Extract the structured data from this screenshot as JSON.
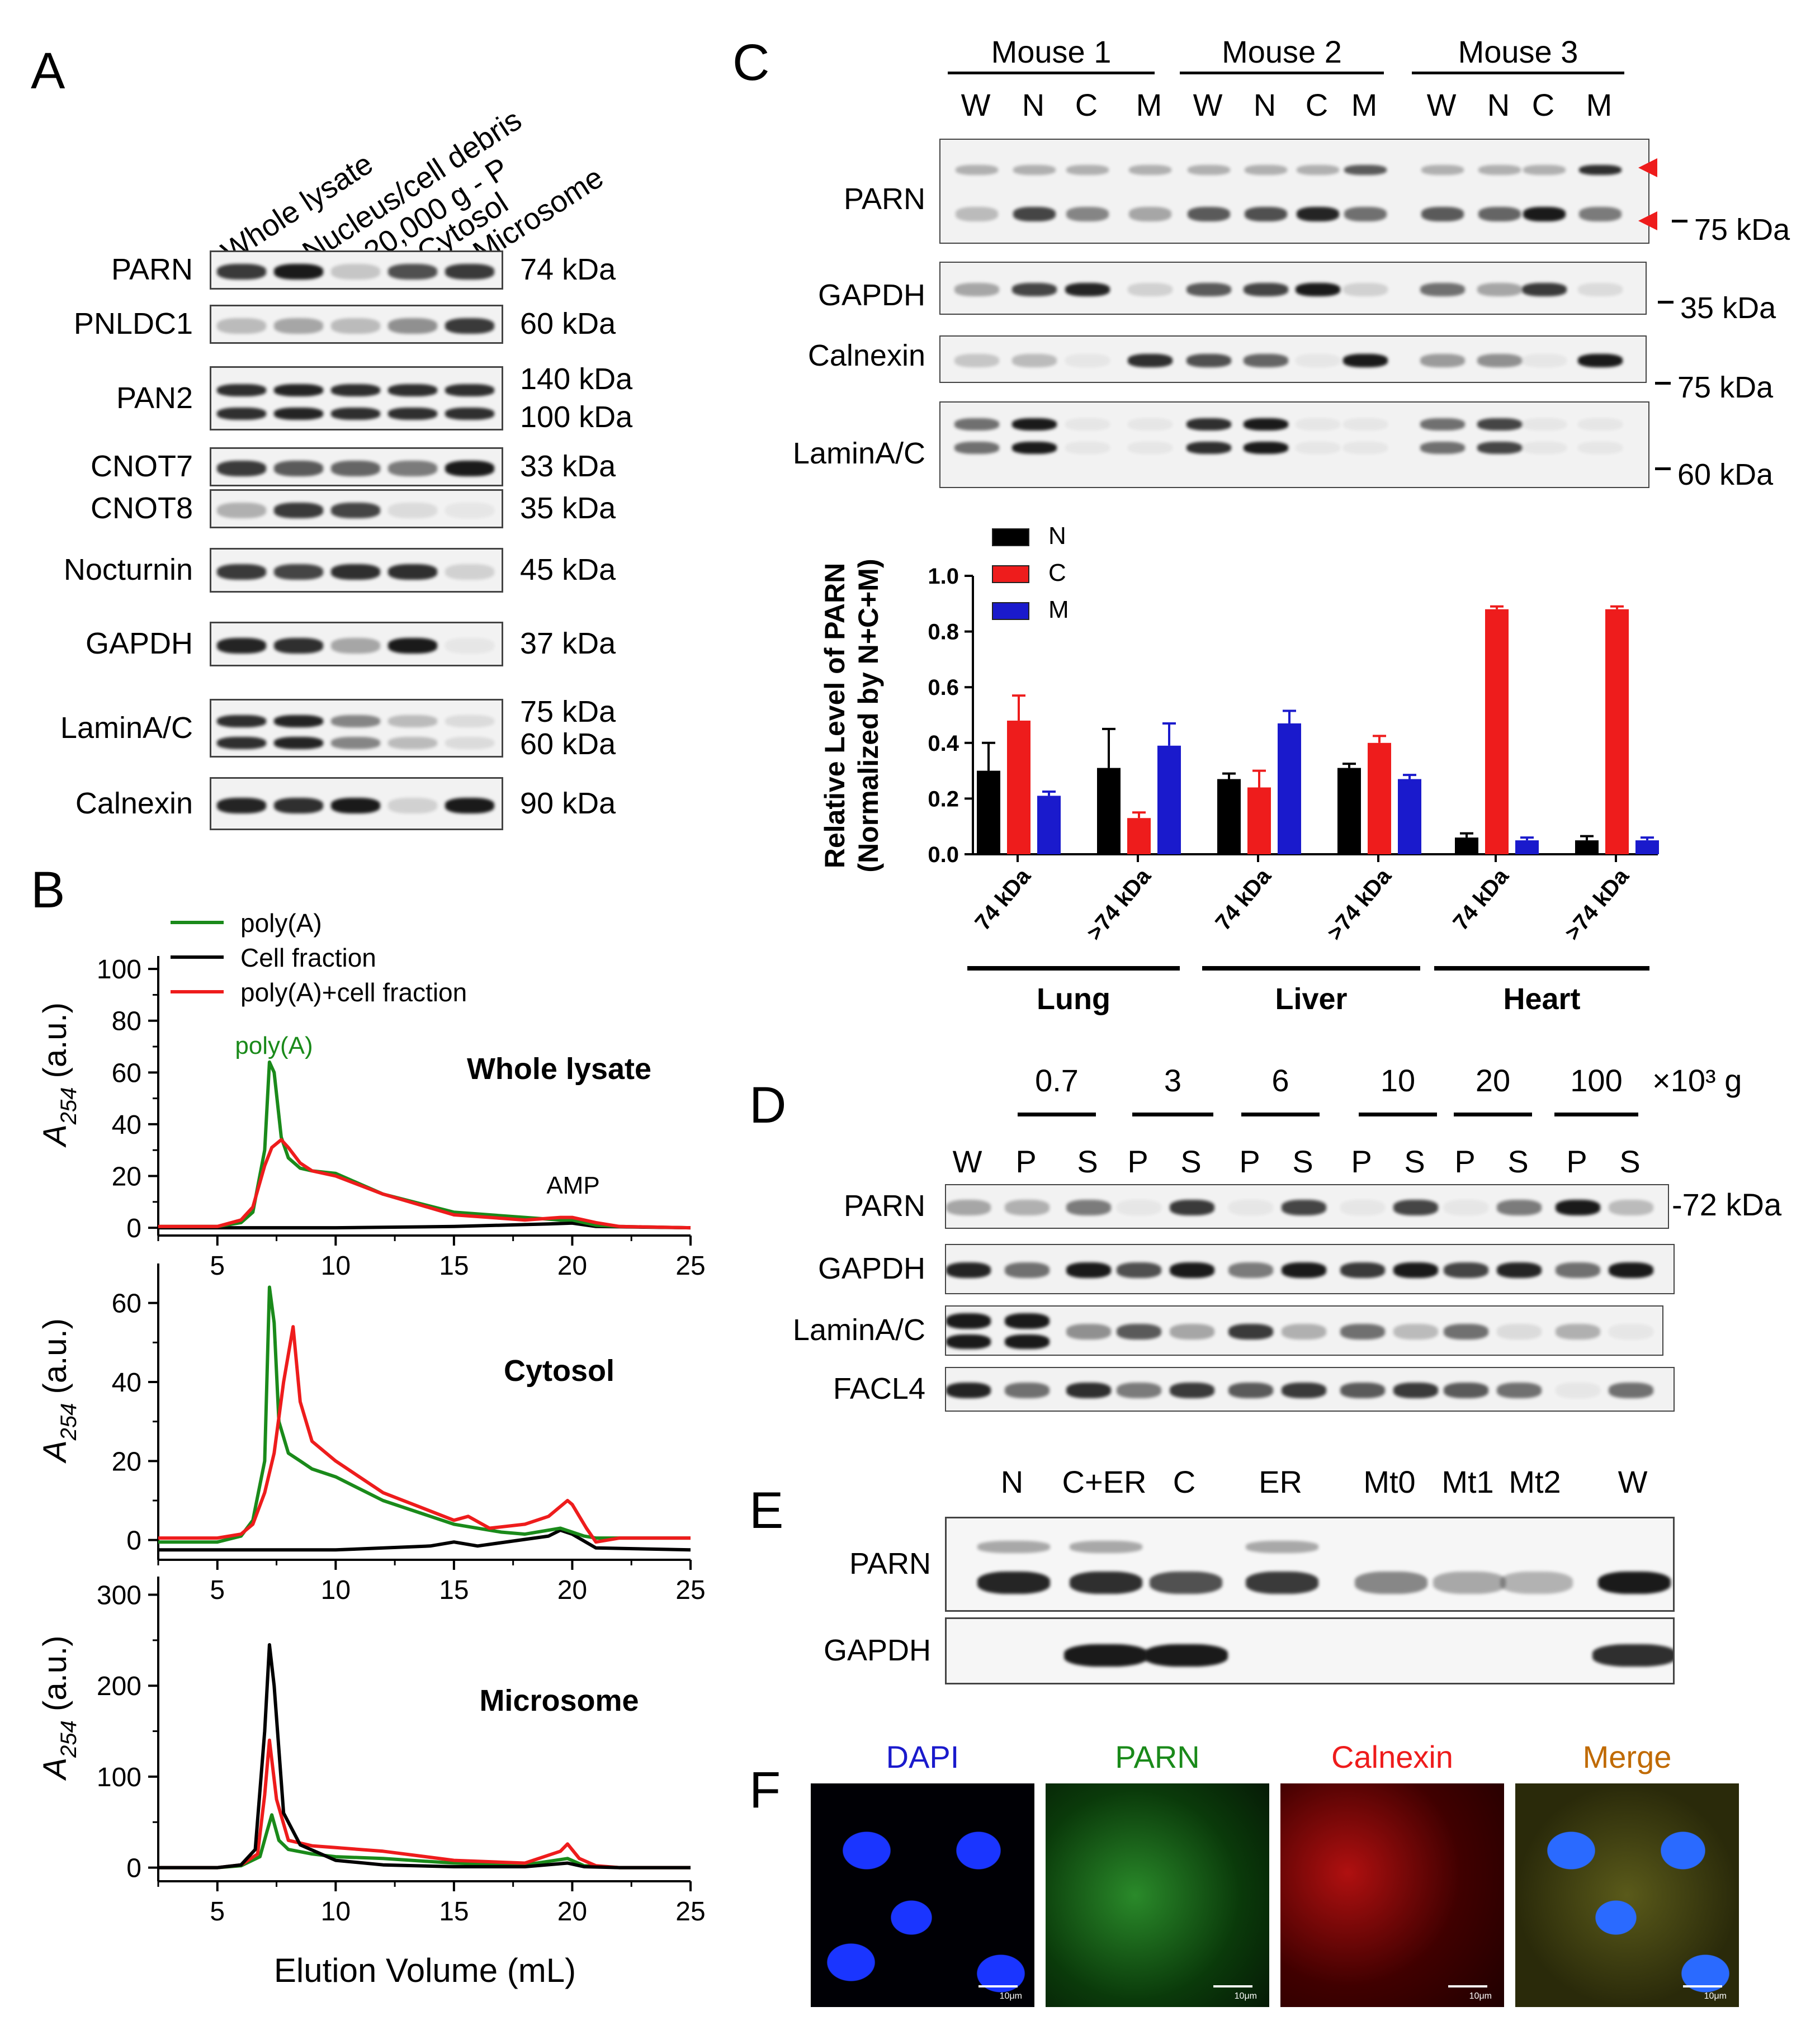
{
  "colors": {
    "green": "#1a8a1a",
    "black": "#000000",
    "red": "#ee1c1c",
    "blue": "#1a1acc",
    "merge_label": "#c06a00",
    "dapi_label": "#1a1acc"
  },
  "panelA": {
    "letter": "A",
    "lanes": [
      "Whole lysate",
      "Nucleus/cell debris",
      "20,000 g - P",
      "Cytosol",
      "Microsome"
    ],
    "rows": [
      {
        "name": "PARN",
        "sizes": [
          "74 kDa"
        ]
      },
      {
        "name": "PNLDC1",
        "sizes": [
          "60 kDa"
        ]
      },
      {
        "name": "PAN2",
        "sizes": [
          "140 kDa",
          "100 kDa"
        ]
      },
      {
        "name": "CNOT7",
        "sizes": [
          "33 kDa"
        ]
      },
      {
        "name": "CNOT8",
        "sizes": [
          "35 kDa"
        ]
      },
      {
        "name": "Nocturnin",
        "sizes": [
          "45 kDa"
        ]
      },
      {
        "name": "GAPDH",
        "sizes": [
          "37 kDa"
        ]
      },
      {
        "name": "LaminA/C",
        "sizes": [
          "75 kDa",
          "60 kDa"
        ]
      },
      {
        "name": "Calnexin",
        "sizes": [
          "90 kDa"
        ]
      }
    ]
  },
  "panelB": {
    "letter": "B",
    "legend": [
      "poly(A)",
      "Cell fraction",
      "poly(A)+cell fraction"
    ],
    "xlabel": "Elution Volume (mL)",
    "ylabel_main": "A",
    "ylabel_sub": "254",
    "ylabel_unit": "(a.u.)",
    "subplots": [
      {
        "title": "Whole lysate",
        "annotations": [
          "poly(A)",
          "AMP"
        ]
      },
      {
        "title": "Cytosol"
      },
      {
        "title": "Microsome"
      }
    ]
  },
  "panelC": {
    "letter": "C",
    "mice": [
      "Mouse 1",
      "Mouse 2",
      "Mouse 3"
    ],
    "lanes": [
      "W",
      "N",
      "C",
      "M",
      "W",
      "N",
      "C",
      "M",
      "W",
      "N",
      "C",
      "M"
    ],
    "rows": [
      "PARN",
      "GAPDH",
      "Calnexin",
      "LaminA/C"
    ],
    "markers": [
      "75 kDa",
      "35 kDa",
      "75 kDa",
      "60 kDa"
    ],
    "ylabel1": "Relative Level of PARN",
    "ylabel2": "(Normalized by N+C+M)",
    "legend": [
      "N",
      "C",
      "M"
    ],
    "groups": [
      "Lung",
      "Liver",
      "Heart"
    ],
    "subgroups": [
      "74 kDa",
      ">74 kDa",
      "74 kDa",
      ">74 kDa",
      "74 kDa",
      ">74 kDa"
    ]
  },
  "panelD": {
    "letter": "D",
    "speeds": [
      "0.7",
      "3",
      "6",
      "10",
      "20",
      "100"
    ],
    "unit": "×10³ g",
    "lanes": [
      "W",
      "P",
      "S",
      "P",
      "S",
      "P",
      "S",
      "P",
      "S",
      "P",
      "S",
      "P",
      "S"
    ],
    "rows": [
      "PARN",
      "GAPDH",
      "LaminA/C",
      "FACL4"
    ],
    "marker": "-72 kDa"
  },
  "panelE": {
    "letter": "E",
    "lanes": [
      "N",
      "C+ER",
      "C",
      "ER",
      "Mt0",
      "Mt1",
      "Mt2",
      "W"
    ],
    "rows": [
      "PARN",
      "GAPDH"
    ]
  },
  "panelF": {
    "letter": "F",
    "channels": [
      "DAPI",
      "PARN",
      "Calnexin",
      "Merge"
    ],
    "scalebar": "10μm"
  },
  "chart_data": [
    {
      "type": "line",
      "title": "Whole lysate",
      "xlabel": "Elution Volume (mL)",
      "ylabel": "A254 (a.u.)",
      "xlim": [
        2.5,
        25
      ],
      "ylim": [
        -3,
        105
      ],
      "xticks": [
        5,
        10,
        15,
        20,
        25
      ],
      "yticks": [
        0,
        20,
        40,
        60,
        80,
        100
      ],
      "series": [
        {
          "name": "poly(A)",
          "x": [
            2.5,
            5,
            6,
            6.5,
            7,
            7.2,
            7.4,
            7.7,
            8,
            8.5,
            9,
            10,
            12,
            15,
            18,
            19.5,
            20,
            21,
            22,
            25
          ],
          "y": [
            0.5,
            0.5,
            2,
            6,
            30,
            64,
            60,
            35,
            27,
            23,
            22,
            21,
            13,
            6,
            4,
            3,
            3,
            1,
            0.5,
            0
          ]
        },
        {
          "name": "Cell fraction",
          "x": [
            2.5,
            5,
            10,
            15,
            19,
            20,
            21,
            25
          ],
          "y": [
            0,
            0,
            0,
            0.5,
            1.5,
            1.8,
            0.5,
            0
          ]
        },
        {
          "name": "poly(A)+cell fraction",
          "x": [
            2.5,
            5,
            6,
            6.5,
            7,
            7.3,
            7.7,
            8,
            8.5,
            9,
            10,
            12,
            15,
            18,
            19.5,
            20,
            21,
            22,
            25
          ],
          "y": [
            0.5,
            0.5,
            3,
            8,
            24,
            31,
            34,
            31,
            25,
            22,
            20,
            13,
            5,
            3,
            4,
            4,
            2,
            0.5,
            0
          ]
        }
      ]
    },
    {
      "type": "line",
      "title": "Cytosol",
      "xlabel": "Elution Volume (mL)",
      "ylabel": "A254 (a.u.)",
      "xlim": [
        2.5,
        25
      ],
      "ylim": [
        -5,
        70
      ],
      "xticks": [
        5,
        10,
        15,
        20,
        25
      ],
      "yticks": [
        0,
        20,
        40,
        60
      ],
      "series": [
        {
          "name": "poly(A)",
          "x": [
            2.5,
            5,
            6,
            6.5,
            7,
            7.2,
            7.4,
            7.6,
            8,
            8.5,
            9,
            10,
            12,
            15,
            17,
            18,
            19.5,
            20,
            20.5,
            21,
            22,
            25
          ],
          "y": [
            -0.5,
            -0.5,
            1,
            5,
            20,
            64,
            55,
            30,
            22,
            20,
            18,
            16,
            10,
            4,
            2,
            1.5,
            3,
            2,
            1,
            0.5,
            0.5,
            0.5
          ]
        },
        {
          "name": "Cell fraction",
          "x": [
            2.5,
            5,
            10,
            14,
            15,
            16,
            19,
            19.5,
            20,
            21,
            25
          ],
          "y": [
            -2.5,
            -2.5,
            -2.5,
            -1.5,
            -0.5,
            -1.5,
            1,
            2.5,
            1.5,
            -2,
            -2.5
          ]
        },
        {
          "name": "poly(A)+cell fraction",
          "x": [
            2.5,
            5,
            6,
            6.5,
            7,
            7.4,
            7.8,
            8.2,
            8.5,
            9,
            10,
            12,
            15,
            15.6,
            16.5,
            18,
            19,
            19.8,
            20,
            20.6,
            21,
            22,
            25
          ],
          "y": [
            0.5,
            0.5,
            1.5,
            4,
            12,
            22,
            40,
            54,
            35,
            25,
            20,
            12,
            5,
            6,
            3,
            4,
            6,
            10,
            9,
            3,
            -0.5,
            0.5,
            0.5
          ]
        }
      ]
    },
    {
      "type": "line",
      "title": "Microsome",
      "xlabel": "Elution Volume (mL)",
      "ylabel": "A254 (a.u.)",
      "xlim": [
        2.5,
        25
      ],
      "ylim": [
        -15,
        320
      ],
      "xticks": [
        5,
        10,
        15,
        20,
        25
      ],
      "yticks": [
        0,
        100,
        200,
        300
      ],
      "series": [
        {
          "name": "poly(A)",
          "x": [
            2.5,
            5,
            6,
            6.8,
            7.1,
            7.3,
            7.6,
            8,
            9,
            10,
            12,
            15,
            18,
            19.8,
            20.5,
            22,
            25
          ],
          "y": [
            0,
            0,
            2,
            12,
            40,
            58,
            30,
            20,
            15,
            12,
            10,
            5,
            3,
            10,
            2,
            0,
            0
          ]
        },
        {
          "name": "Cell fraction",
          "x": [
            2.5,
            5,
            6,
            6.6,
            7,
            7.2,
            7.4,
            7.8,
            8.5,
            10,
            12,
            15,
            18,
            19.8,
            20.5,
            22,
            25
          ],
          "y": [
            0,
            0,
            3,
            20,
            150,
            245,
            200,
            60,
            25,
            8,
            3,
            1,
            1,
            5,
            1,
            0,
            0
          ]
        },
        {
          "name": "poly(A)+cell fraction",
          "x": [
            2.5,
            5,
            6,
            6.7,
            7,
            7.2,
            7.5,
            8,
            9,
            10,
            12,
            15,
            18,
            19.5,
            19.8,
            20.3,
            21,
            22,
            25
          ],
          "y": [
            0,
            0,
            3,
            15,
            80,
            140,
            75,
            30,
            24,
            22,
            18,
            8,
            5,
            18,
            26,
            10,
            2,
            0,
            0
          ]
        }
      ]
    },
    {
      "type": "bar",
      "ylabel": "Relative Level of PARN (Normalized by N+C+M)",
      "ylim": [
        0,
        1.0
      ],
      "yticks": [
        0.0,
        0.2,
        0.4,
        0.6,
        0.8,
        1.0
      ],
      "categories": [
        "74 kDa",
        ">74 kDa",
        "74 kDa",
        ">74 kDa",
        "74 kDa",
        ">74 kDa"
      ],
      "groups": [
        "Lung",
        "Liver",
        "Heart"
      ],
      "series": [
        {
          "name": "N",
          "values": [
            0.3,
            0.31,
            0.27,
            0.31,
            0.06,
            0.05
          ],
          "errors": [
            0.1,
            0.14,
            0.02,
            0.015,
            0.015,
            0.015
          ]
        },
        {
          "name": "C",
          "values": [
            0.48,
            0.13,
            0.24,
            0.4,
            0.88,
            0.88
          ],
          "errors": [
            0.09,
            0.02,
            0.06,
            0.025,
            0.01,
            0.01
          ]
        },
        {
          "name": "M",
          "values": [
            0.21,
            0.39,
            0.47,
            0.27,
            0.05,
            0.05
          ],
          "errors": [
            0.015,
            0.08,
            0.045,
            0.015,
            0.01,
            0.01
          ]
        }
      ]
    }
  ]
}
